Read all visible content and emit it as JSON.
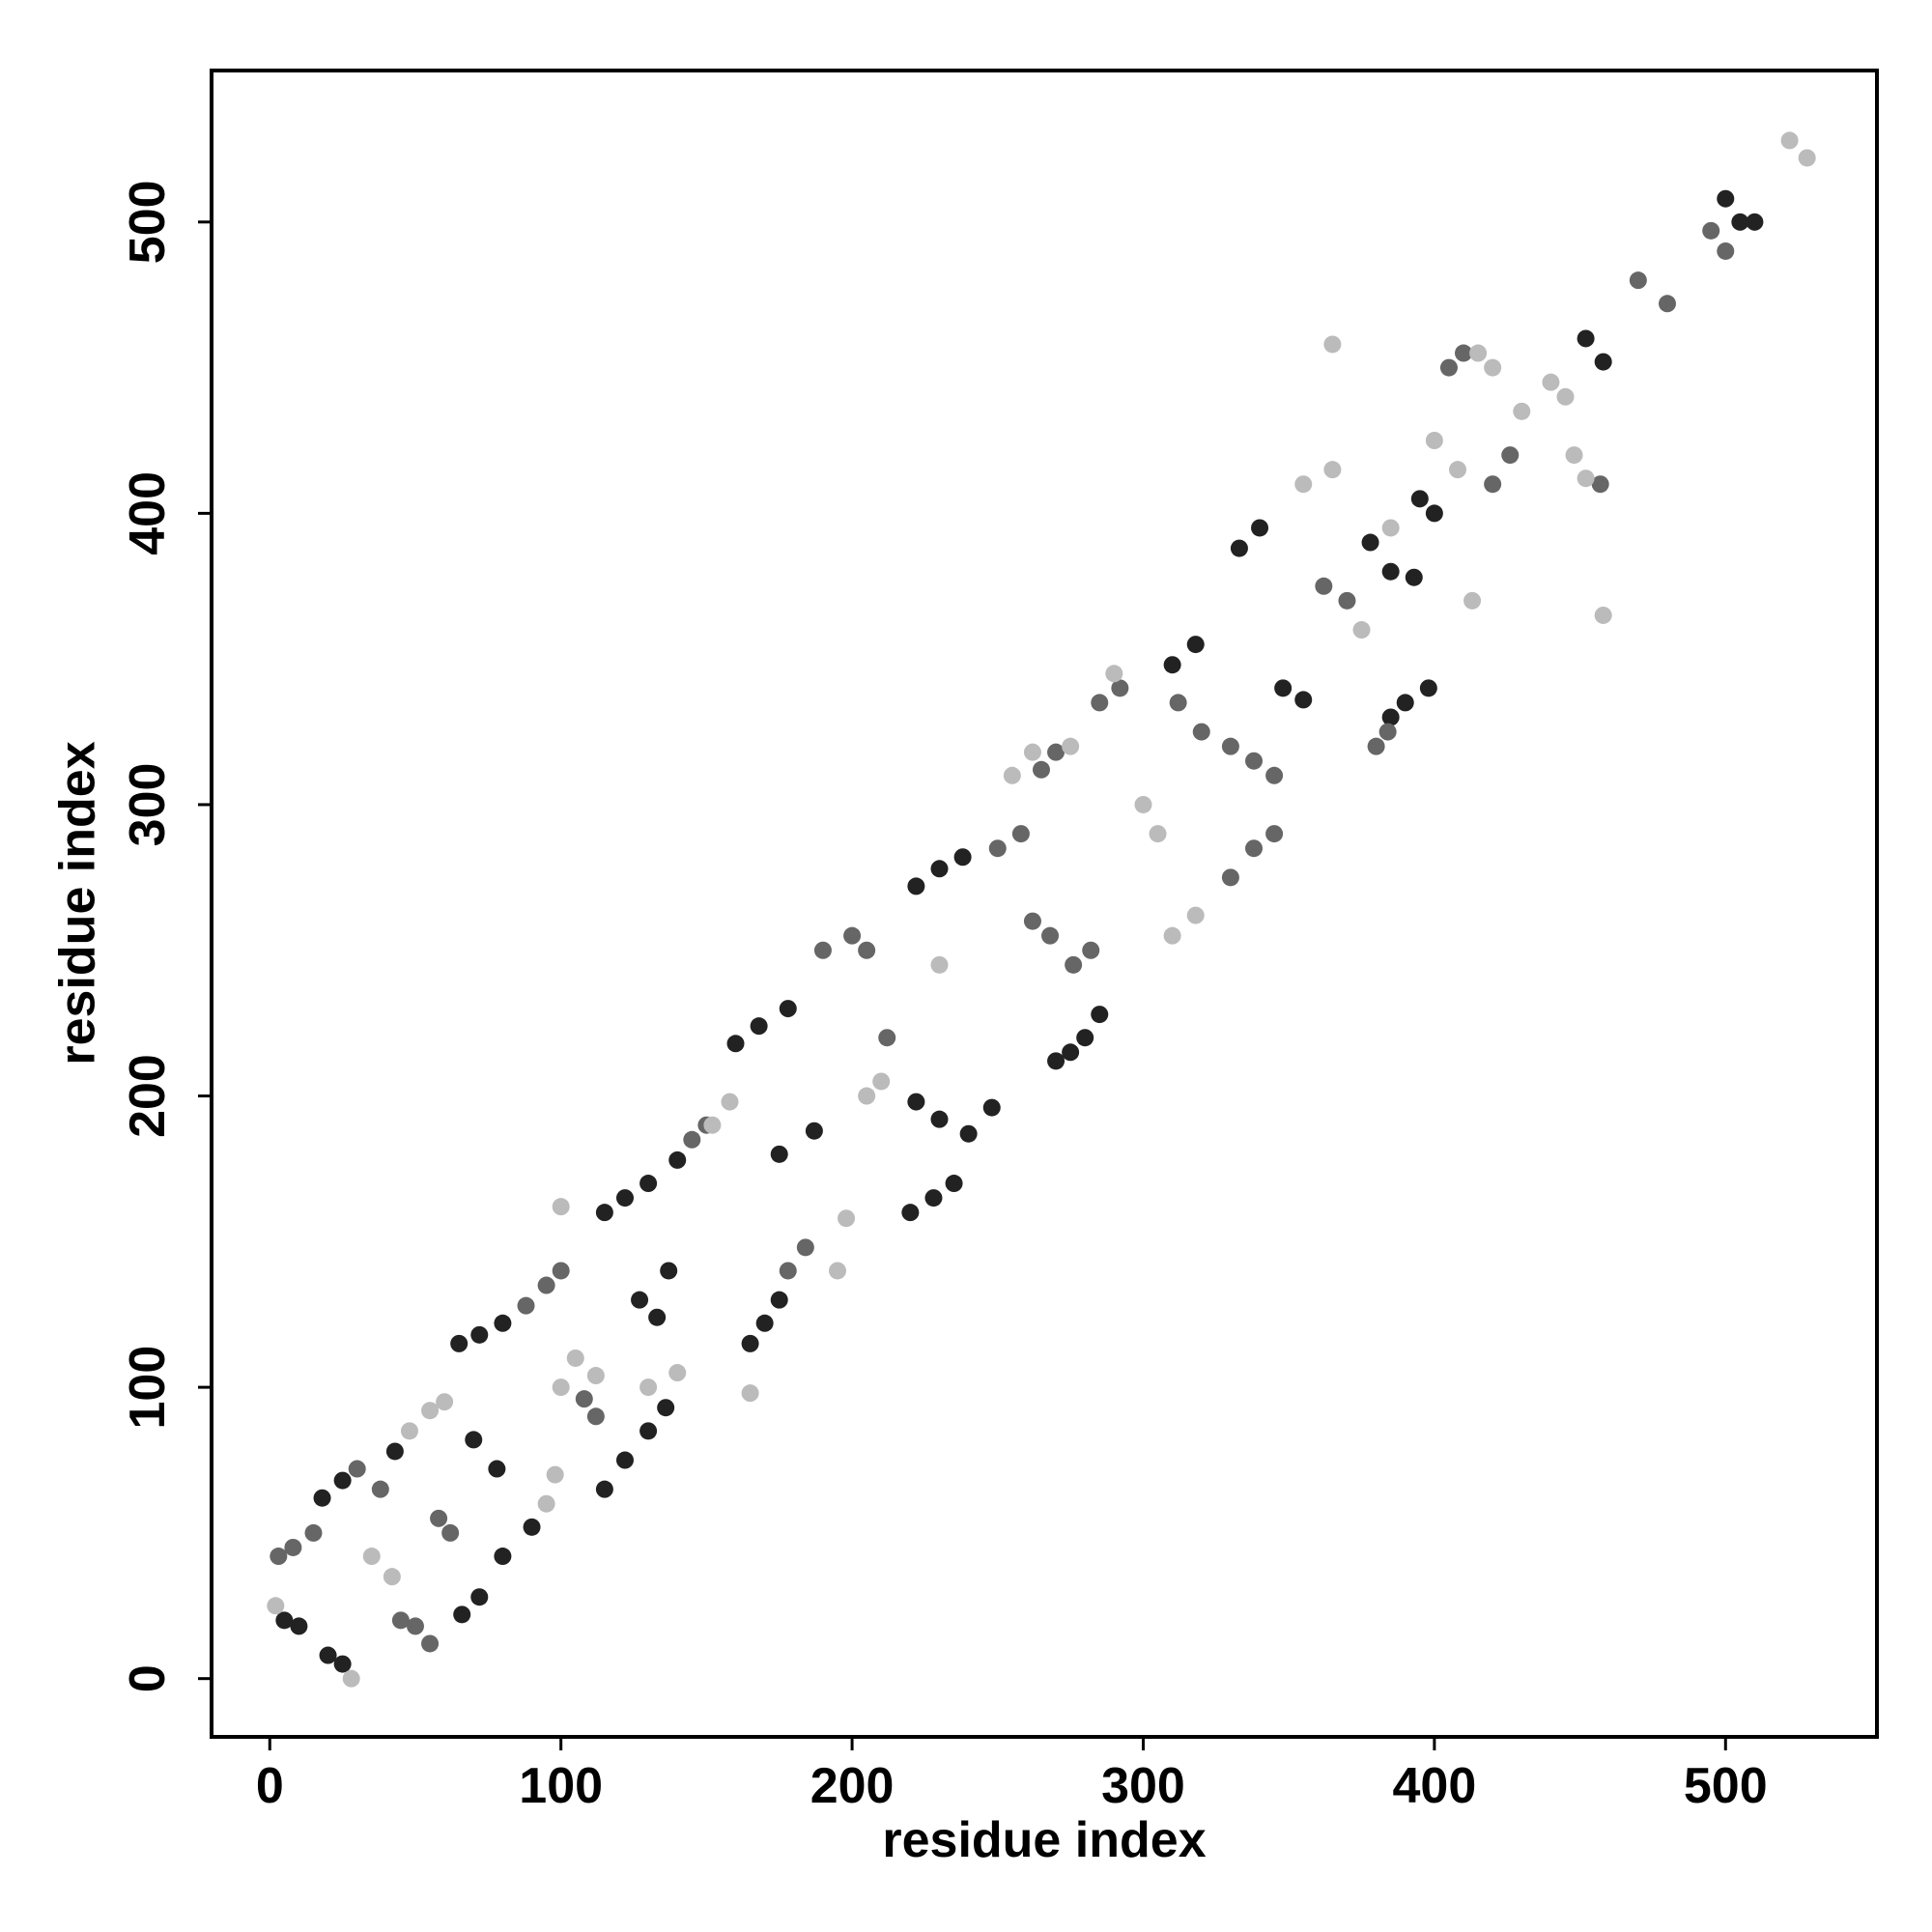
{
  "chart_data": {
    "type": "scatter",
    "xlabel": "residue index",
    "ylabel": "residue index",
    "xlim": [
      -20,
      552
    ],
    "ylim": [
      -20,
      552
    ],
    "xticks": [
      0,
      100,
      200,
      300,
      400,
      500
    ],
    "yticks": [
      0,
      100,
      200,
      300,
      400,
      500
    ],
    "series": [
      {
        "color": "#222222",
        "x": [
          5,
          10,
          20,
          25,
          18,
          25,
          43,
          70,
          78,
          66,
          72,
          80,
          90,
          65,
          72,
          80,
          115,
          122,
          130,
          136,
          127,
          133,
          137,
          115,
          122,
          130,
          140,
          165,
          170,
          175,
          160,
          168,
          178,
          187,
          175,
          220,
          228,
          235,
          222,
          230,
          240,
          248,
          222,
          230,
          238,
          280,
          275,
          270,
          285,
          310,
          318,
          333,
          340,
          348,
          355,
          385,
          390,
          398,
          378,
          385,
          393,
          395,
          400,
          452,
          458,
          500,
          505,
          510
        ],
        "values": [
          20,
          18,
          8,
          5,
          62,
          68,
          78,
          82,
          72,
          22,
          28,
          42,
          52,
          115,
          118,
          122,
          65,
          75,
          85,
          93,
          130,
          124,
          140,
          160,
          165,
          170,
          178,
          115,
          122,
          130,
          218,
          224,
          230,
          188,
          180,
          160,
          165,
          170,
          198,
          192,
          187,
          196,
          272,
          278,
          282,
          220,
          215,
          212,
          228,
          348,
          355,
          388,
          395,
          340,
          336,
          330,
          335,
          340,
          390,
          380,
          378,
          405,
          400,
          460,
          452,
          508,
          500,
          500
        ]
      },
      {
        "color": "#666666",
        "x": [
          3,
          8,
          15,
          30,
          38,
          45,
          50,
          55,
          58,
          62,
          88,
          95,
          100,
          108,
          112,
          145,
          150,
          178,
          184,
          200,
          205,
          190,
          212,
          250,
          258,
          262,
          268,
          276,
          282,
          265,
          270,
          285,
          292,
          312,
          320,
          330,
          338,
          345,
          330,
          338,
          345,
          362,
          370,
          380,
          384,
          405,
          410,
          420,
          426,
          457,
          470,
          480,
          495,
          500
        ],
        "values": [
          42,
          45,
          50,
          72,
          65,
          20,
          18,
          12,
          55,
          50,
          128,
          135,
          140,
          96,
          90,
          185,
          190,
          140,
          148,
          255,
          250,
          250,
          220,
          285,
          290,
          260,
          255,
          245,
          250,
          312,
          318,
          335,
          340,
          335,
          325,
          320,
          315,
          310,
          275,
          285,
          290,
          375,
          370,
          320,
          325,
          450,
          455,
          410,
          420,
          410,
          480,
          472,
          497,
          490
        ]
      },
      {
        "color": "#bbbbbb",
        "x": [
          2,
          28,
          35,
          42,
          48,
          55,
          60,
          95,
          98,
          100,
          105,
          100,
          112,
          130,
          140,
          152,
          158,
          165,
          195,
          198,
          205,
          210,
          230,
          255,
          262,
          275,
          290,
          300,
          305,
          310,
          318,
          355,
          365,
          375,
          385,
          400,
          408,
          413,
          430,
          440,
          445,
          448,
          452,
          458,
          365,
          415,
          420,
          522,
          528
        ],
        "values": [
          25,
          0,
          42,
          35,
          85,
          92,
          95,
          60,
          70,
          162,
          110,
          100,
          104,
          100,
          105,
          190,
          198,
          98,
          140,
          158,
          200,
          205,
          245,
          310,
          318,
          320,
          345,
          300,
          290,
          255,
          262,
          410,
          415,
          360,
          395,
          425,
          415,
          370,
          435,
          445,
          440,
          420,
          412,
          365,
          458,
          455,
          450,
          528,
          522
        ]
      }
    ]
  }
}
